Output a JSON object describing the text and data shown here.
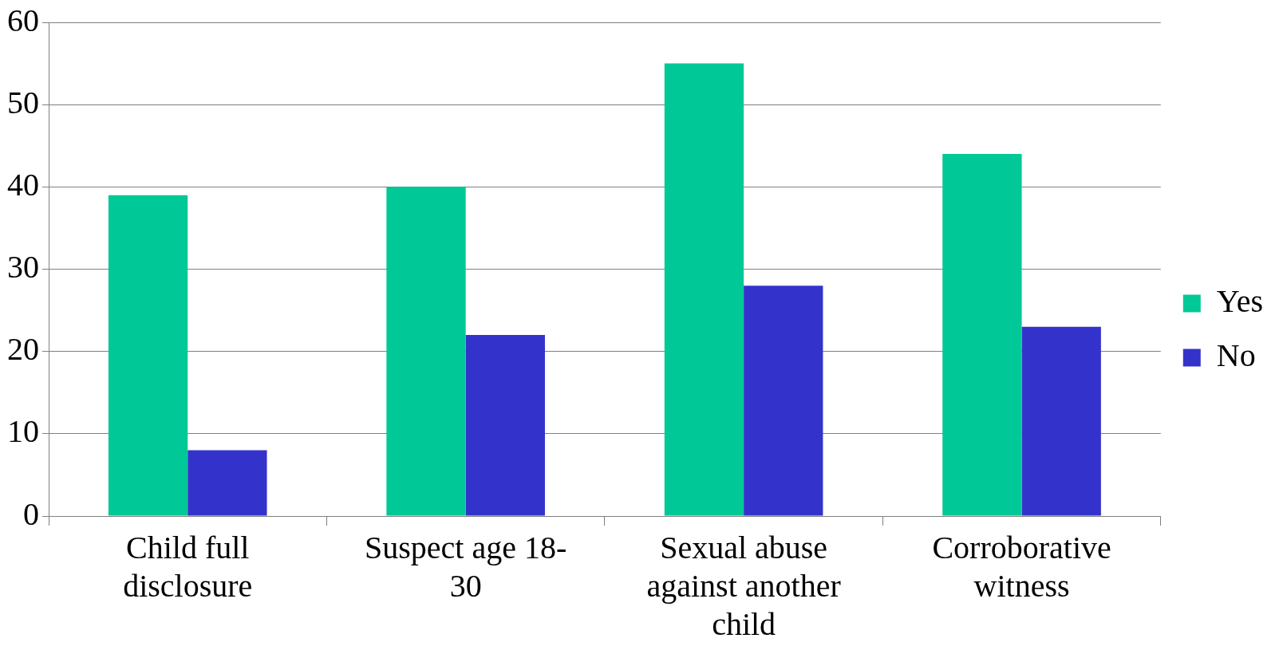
{
  "chart_data": {
    "type": "bar",
    "categories": [
      "Child full disclosure",
      "Suspect age 18-30",
      "Sexual abuse against another child",
      "Corroborative witness"
    ],
    "series": [
      {
        "name": "Yes",
        "color": "#00c896",
        "values": [
          39,
          40,
          55,
          44
        ]
      },
      {
        "name": "No",
        "color": "#3333cc",
        "values": [
          8,
          22,
          28,
          23
        ]
      }
    ],
    "ylim": [
      0,
      60
    ],
    "yticks": [
      0,
      10,
      20,
      30,
      40,
      50,
      60
    ],
    "grid": "y",
    "legend": "right"
  }
}
